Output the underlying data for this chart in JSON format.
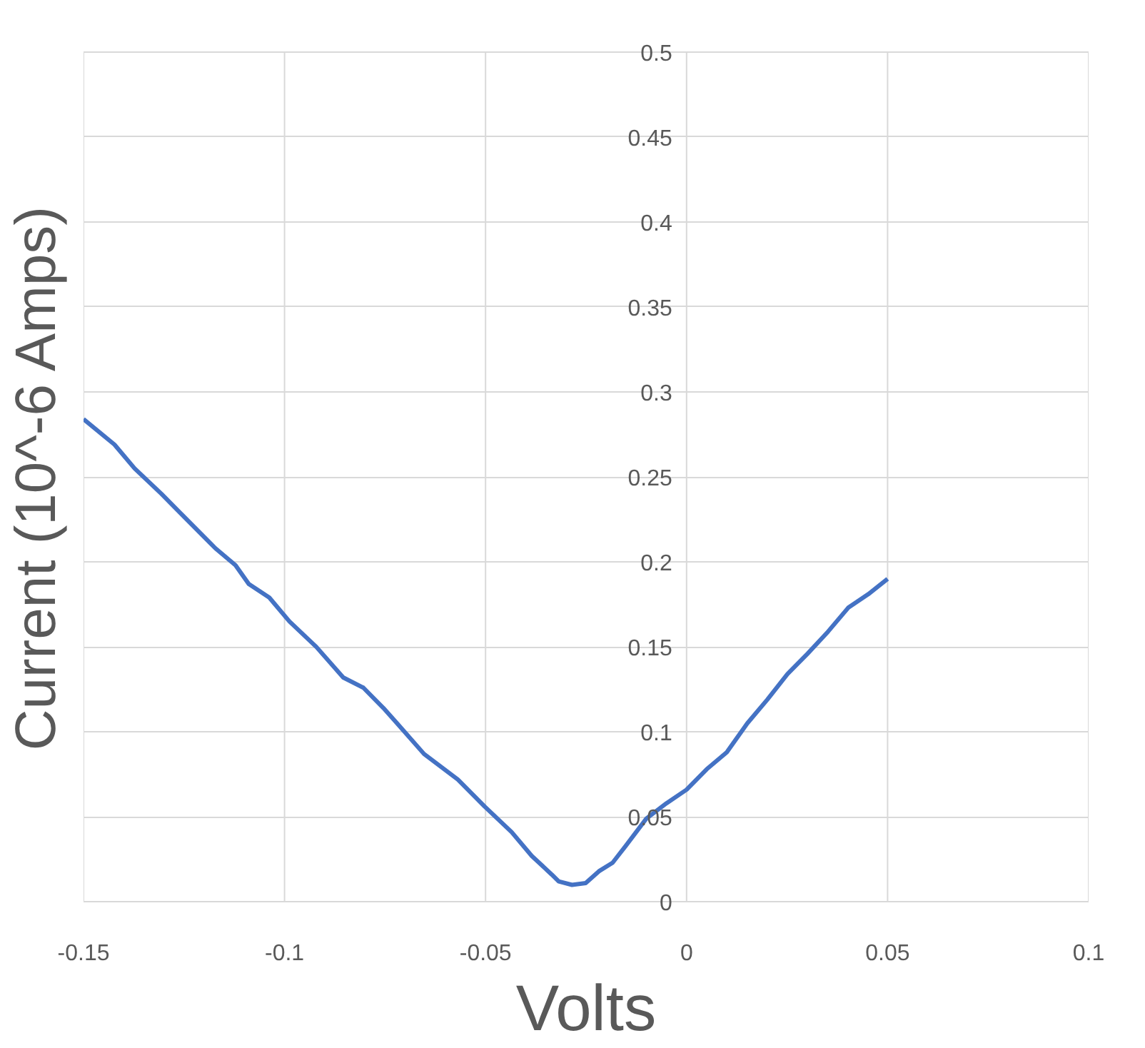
{
  "chart_data": {
    "type": "line",
    "xlabel": "Volts",
    "ylabel": "Current (10^-6 Amps)",
    "xlim": [
      -0.15,
      0.1
    ],
    "xticks": [
      -0.15,
      -0.1,
      -0.05,
      0,
      0.05,
      0.1
    ],
    "ylim": [
      0,
      0.5
    ],
    "yticks": [
      0,
      0.05,
      0.1,
      0.15,
      0.2,
      0.25,
      0.3,
      0.35,
      0.4,
      0.45,
      0.5
    ],
    "grid": true,
    "marker": "none",
    "line_style": "solid",
    "series": [
      {
        "color": "#4472c4",
        "x": [
          -0.15,
          -0.1423,
          -0.1373,
          -0.1306,
          -0.1256,
          -0.1172,
          -0.1122,
          -0.1089,
          -0.1038,
          -0.0988,
          -0.0921,
          -0.0854,
          -0.0804,
          -0.0754,
          -0.072,
          -0.0653,
          -0.0569,
          -0.0502,
          -0.0435,
          -0.0385,
          -0.0335,
          -0.0318,
          -0.0285,
          -0.0251,
          -0.0218,
          -0.0184,
          -0.0151,
          -0.01,
          -0.005,
          0,
          0.005,
          0.01,
          0.0151,
          0.0201,
          0.0251,
          0.0301,
          0.0352,
          0.0402,
          0.0452,
          0.05
        ],
        "values": [
          0.284,
          0.269,
          0.255,
          0.24,
          0.228,
          0.208,
          0.198,
          0.187,
          0.179,
          0.165,
          0.15,
          0.132,
          0.126,
          0.114,
          0.105,
          0.087,
          0.072,
          0.056,
          0.041,
          0.027,
          0.016,
          0.012,
          0.01,
          0.011,
          0.018,
          0.023,
          0.033,
          0.049,
          0.058,
          0.066,
          0.078,
          0.088,
          0.105,
          0.119,
          0.134,
          0.146,
          0.159,
          0.173,
          0.181,
          0.19
        ]
      }
    ]
  }
}
